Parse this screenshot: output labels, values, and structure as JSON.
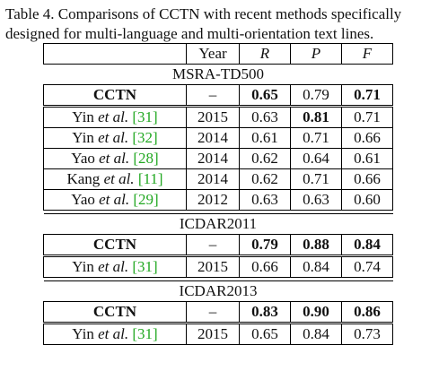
{
  "caption": "Table 4. Comparisons of CCTN with recent methods specifically designed for multi-language and multi-orientation text lines.",
  "header": {
    "col0": "",
    "col1": "Year",
    "col2": "R",
    "col3": "P",
    "col4": "F"
  },
  "sections": [
    {
      "title": "MSRA-TD500",
      "rows": [
        {
          "author": "CCTN",
          "etal": "",
          "cite": "",
          "year": "–",
          "r": "0.65",
          "p": "0.79",
          "f": "0.71",
          "bold": [
            true,
            false,
            true
          ]
        },
        {
          "author": "Yin",
          "etal": "et al.",
          "cite": "[31]",
          "year": "2015",
          "r": "0.63",
          "p": "0.81",
          "f": "0.71",
          "bold": [
            false,
            true,
            false
          ]
        },
        {
          "author": "Yin",
          "etal": "et al.",
          "cite": "[32]",
          "year": "2014",
          "r": "0.61",
          "p": "0.71",
          "f": "0.66",
          "bold": [
            false,
            false,
            false
          ]
        },
        {
          "author": "Yao",
          "etal": "et al.",
          "cite": "[28]",
          "year": "2014",
          "r": "0.62",
          "p": "0.64",
          "f": "0.61",
          "bold": [
            false,
            false,
            false
          ]
        },
        {
          "author": "Kang",
          "etal": "et al.",
          "cite": "[11]",
          "year": "2014",
          "r": "0.62",
          "p": "0.71",
          "f": "0.66",
          "bold": [
            false,
            false,
            false
          ]
        },
        {
          "author": "Yao",
          "etal": "et al.",
          "cite": "[29]",
          "year": "2012",
          "r": "0.63",
          "p": "0.63",
          "f": "0.60",
          "bold": [
            false,
            false,
            false
          ]
        }
      ]
    },
    {
      "title": "ICDAR2011",
      "rows": [
        {
          "author": "CCTN",
          "etal": "",
          "cite": "",
          "year": "–",
          "r": "0.79",
          "p": "0.88",
          "f": "0.84",
          "bold": [
            true,
            true,
            true
          ]
        },
        {
          "author": "Yin",
          "etal": "et al.",
          "cite": "[31]",
          "year": "2015",
          "r": "0.66",
          "p": "0.84",
          "f": "0.74",
          "bold": [
            false,
            false,
            false
          ]
        }
      ]
    },
    {
      "title": "ICDAR2013",
      "rows": [
        {
          "author": "CCTN",
          "etal": "",
          "cite": "",
          "year": "–",
          "r": "0.83",
          "p": "0.90",
          "f": "0.86",
          "bold": [
            true,
            true,
            true
          ]
        },
        {
          "author": "Yin",
          "etal": "et al.",
          "cite": "[31]",
          "year": "2015",
          "r": "0.65",
          "p": "0.84",
          "f": "0.73",
          "bold": [
            false,
            false,
            false
          ]
        }
      ]
    }
  ],
  "colors": {
    "citation": "#22a822",
    "text": "#111111"
  }
}
